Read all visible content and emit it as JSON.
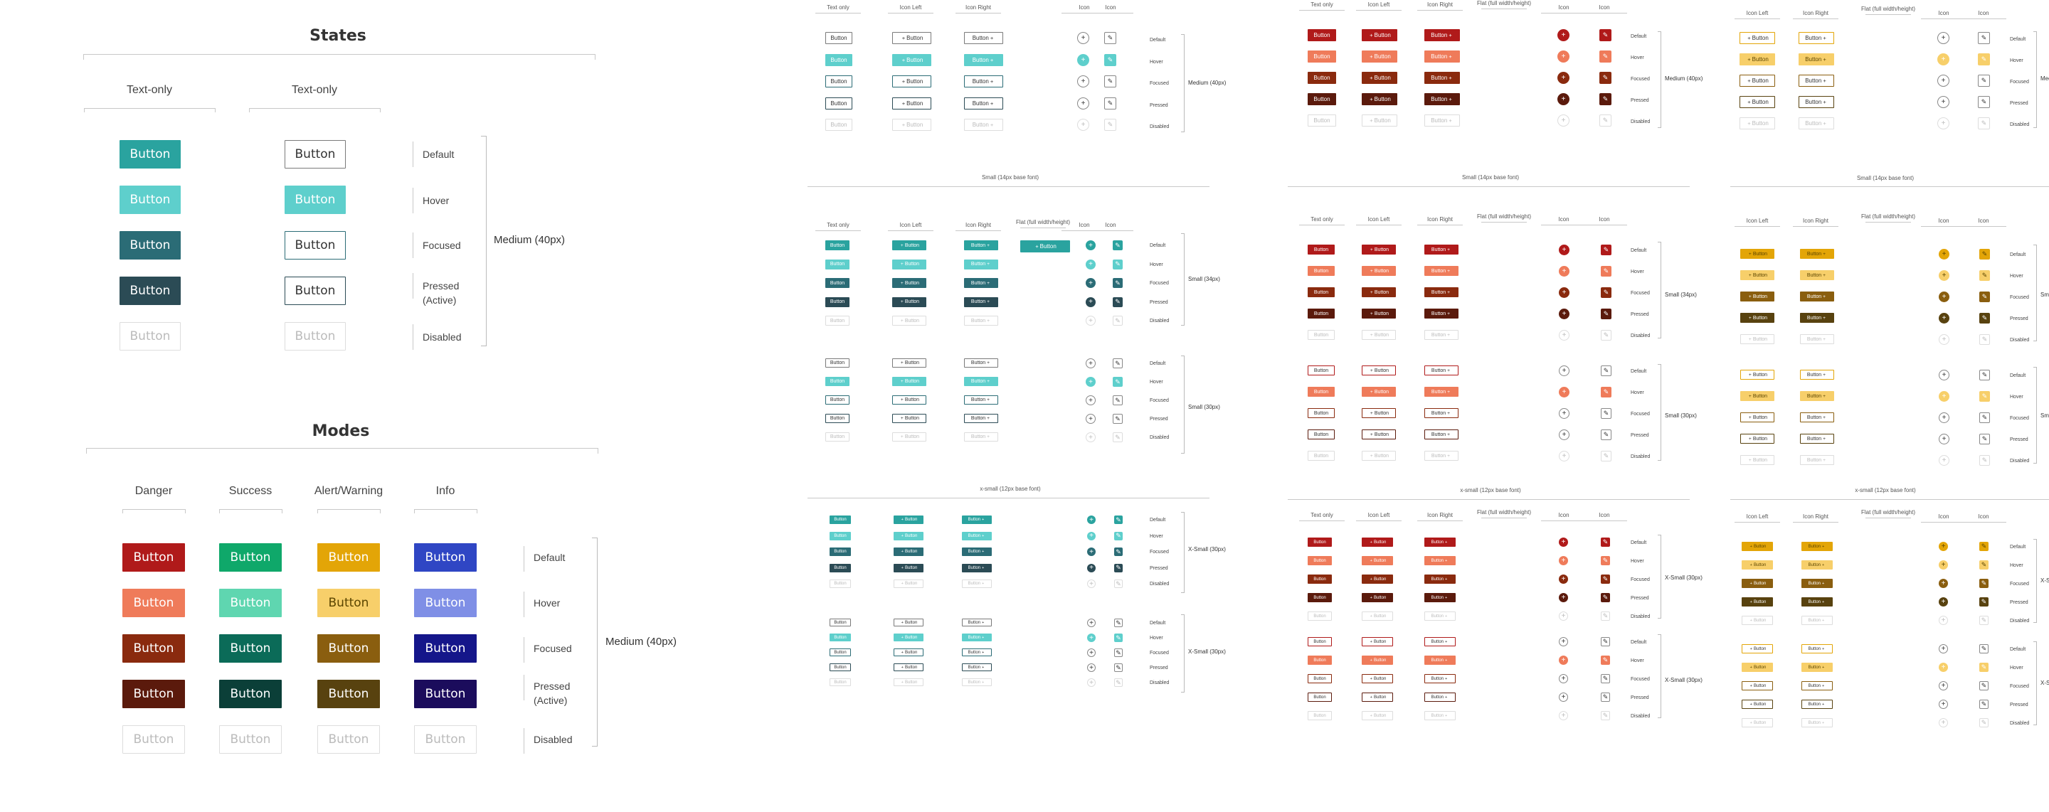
{
  "button_text": "Button",
  "states_section": {
    "title": "States",
    "columns": [
      "Text-only",
      "Text-only"
    ],
    "state_labels": [
      "Default",
      "Hover",
      "Focused",
      "Pressed (Active)",
      "Disabled"
    ],
    "size_label": "Medium (40px)"
  },
  "modes_section": {
    "title": "Modes",
    "columns": [
      "Danger",
      "Success",
      "Alert/Warning",
      "Info"
    ],
    "state_labels": [
      "Default",
      "Hover",
      "Focused",
      "Pressed (Active)",
      "Disabled"
    ],
    "size_label": "Medium (40px)"
  },
  "detail_headers": {
    "text_only": "Text only",
    "icon_left": "Icon Left",
    "icon_right": "Icon Right",
    "flat": "Flat (full width/height)",
    "icon": "Icon"
  },
  "detail_state_labels": [
    "Default",
    "Hover",
    "Focused",
    "Pressed",
    "Disabled"
  ],
  "size_captions": {
    "small": "Small (14px base font)",
    "xsmall": "x-small (12px base font)"
  },
  "size_labels": {
    "medium": "Medium (40px)",
    "small": "Small (34px)",
    "small_light": "Small (30px)",
    "xsmall": "X-Small (30px)"
  },
  "colors": {
    "primary": [
      "#2aa39f",
      "#5ecfcc",
      "#2b6c76",
      "#2b4b55",
      "#ffffff"
    ],
    "danger": [
      "#b01a1a",
      "#ef7b5a",
      "#8a2a0e",
      "#5b1a0c",
      "#ffffff"
    ],
    "success": [
      "#0fa86a",
      "#5fd6b0",
      "#0b6b58",
      "#0b3f38",
      "#ffffff"
    ],
    "warning": [
      "#e3a507",
      "#f7cf6a",
      "#8a5e0f",
      "#58420f",
      "#ffffff"
    ],
    "info": [
      "#2f46c4",
      "#7f8fe6",
      "#15168a",
      "#1b0c5c",
      "#ffffff"
    ],
    "outline_border": [
      "#7a7a7a",
      "#5ecfcc",
      "#2b6c76",
      "#2b4b55",
      "#dddddd"
    ],
    "disabled_text": "#bbbbbb"
  },
  "icons": {
    "plus": "plus-icon",
    "pencil": "pencil-icon"
  }
}
